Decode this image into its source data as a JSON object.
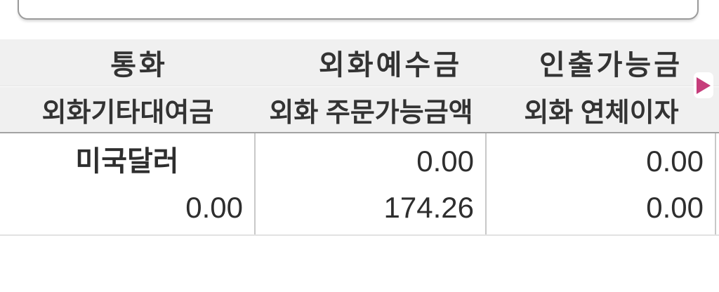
{
  "top_input": {
    "value": "",
    "placeholder": ""
  },
  "table": {
    "headers": {
      "row1": [
        "통화",
        "외화예수금",
        "인출가능금"
      ],
      "row2": [
        "외화기타대여금",
        "외화 주문가능금액",
        "외화 연체이자"
      ]
    },
    "rows": [
      {
        "currency": "미국달러",
        "fx_deposit": "0.00",
        "withdrawable_amount": "0.00",
        "fx_other_loan": "0.00",
        "fx_orderable_amount": "174.26",
        "fx_overdue_interest": "0.00"
      }
    ]
  },
  "scroll_indicator": {
    "icon": "right-triangle"
  },
  "colors": {
    "accent_pink": "#c63d7b",
    "header_band": "#f0f0f0",
    "header_text": "#333333",
    "header_bottom_border": "#a3a3a3",
    "cell_divider": "#c8c8c8",
    "row_bottom_border": "#e2e2e2",
    "top_box_border": "#9b9b9b",
    "data_text": "#2e2e2e"
  }
}
